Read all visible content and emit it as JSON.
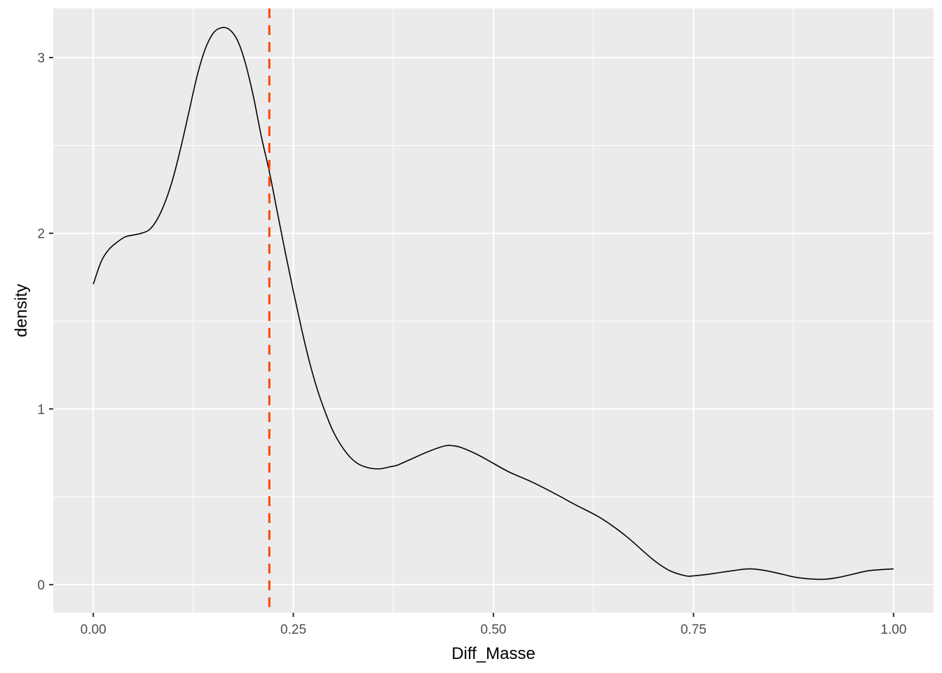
{
  "chart_data": {
    "type": "line",
    "title": "",
    "xlabel": "Diff_Masse",
    "ylabel": "density",
    "xlim": [
      -0.05,
      1.05
    ],
    "ylim": [
      -0.16,
      3.28
    ],
    "x_ticks": [
      0.0,
      0.25,
      0.5,
      0.75,
      1.0
    ],
    "x_tick_labels": [
      "0.00",
      "0.25",
      "0.50",
      "0.75",
      "1.00"
    ],
    "y_ticks": [
      0,
      1,
      2,
      3
    ],
    "y_tick_labels": [
      "0",
      "1",
      "2",
      "3"
    ],
    "grid": true,
    "legend": "none",
    "colors": {
      "panel": "#ebebeb",
      "grid": "#ffffff",
      "line": "#000000",
      "vline": "#ff4500"
    },
    "vline": {
      "x": 0.22,
      "style": "dashed"
    },
    "series": [
      {
        "x": [
          0.0,
          0.01,
          0.02,
          0.03,
          0.04,
          0.05,
          0.06,
          0.07,
          0.08,
          0.09,
          0.1,
          0.11,
          0.12,
          0.13,
          0.14,
          0.15,
          0.16,
          0.17,
          0.18,
          0.19,
          0.2,
          0.21,
          0.22,
          0.23,
          0.24,
          0.25,
          0.26,
          0.27,
          0.28,
          0.29,
          0.3,
          0.31,
          0.32,
          0.33,
          0.34,
          0.35,
          0.36,
          0.37,
          0.38,
          0.4,
          0.42,
          0.44,
          0.45,
          0.46,
          0.48,
          0.5,
          0.52,
          0.55,
          0.58,
          0.6,
          0.63,
          0.65,
          0.67,
          0.7,
          0.72,
          0.74,
          0.75,
          0.77,
          0.8,
          0.82,
          0.84,
          0.86,
          0.88,
          0.91,
          0.93,
          0.95,
          0.97,
          1.0
        ],
        "y": [
          1.71,
          1.84,
          1.91,
          1.95,
          1.98,
          1.99,
          2.0,
          2.02,
          2.08,
          2.18,
          2.32,
          2.5,
          2.7,
          2.9,
          3.05,
          3.14,
          3.17,
          3.16,
          3.1,
          2.97,
          2.78,
          2.55,
          2.35,
          2.12,
          1.89,
          1.67,
          1.46,
          1.27,
          1.11,
          0.98,
          0.87,
          0.79,
          0.73,
          0.69,
          0.67,
          0.66,
          0.66,
          0.67,
          0.68,
          0.72,
          0.76,
          0.79,
          0.79,
          0.78,
          0.74,
          0.69,
          0.64,
          0.58,
          0.51,
          0.46,
          0.39,
          0.33,
          0.26,
          0.14,
          0.08,
          0.05,
          0.05,
          0.06,
          0.08,
          0.09,
          0.08,
          0.06,
          0.04,
          0.03,
          0.04,
          0.06,
          0.08,
          0.09
        ]
      }
    ]
  }
}
